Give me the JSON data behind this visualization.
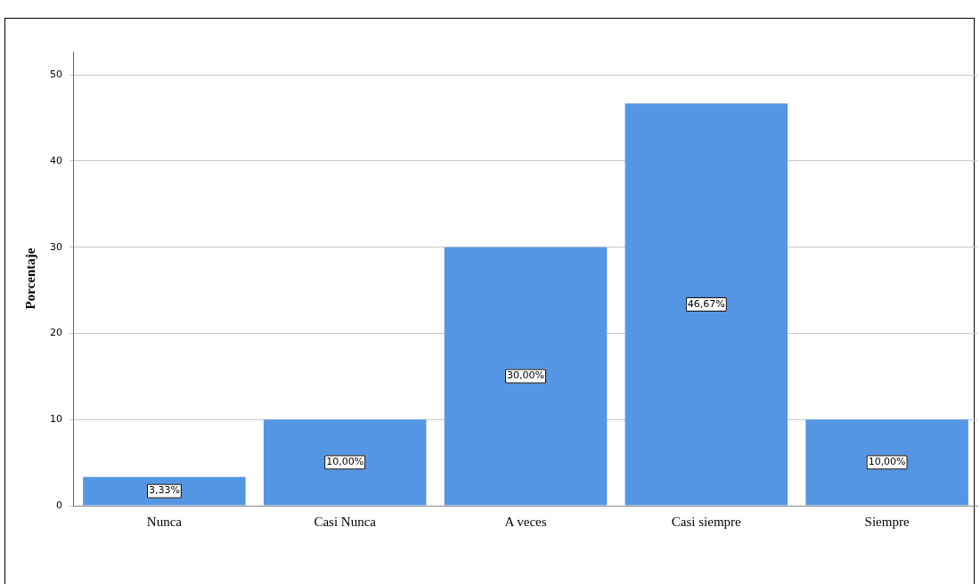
{
  "chart_data": {
    "type": "bar",
    "ylabel": "Porcentaje",
    "categories": [
      "Nunca",
      "Casi Nunca",
      "A veces",
      "Casi siempre",
      "Siempre"
    ],
    "values": [
      3.33,
      10,
      30,
      46.67,
      10
    ],
    "value_labels": [
      "3,33%",
      "10,00%",
      "30,00%",
      "46,67%",
      "10,00%"
    ],
    "color": "#5596e4",
    "ylim": [
      0,
      52.7
    ],
    "yticks": [
      0,
      10,
      20,
      30,
      40,
      50
    ],
    "grid": "y",
    "legend": false
  }
}
